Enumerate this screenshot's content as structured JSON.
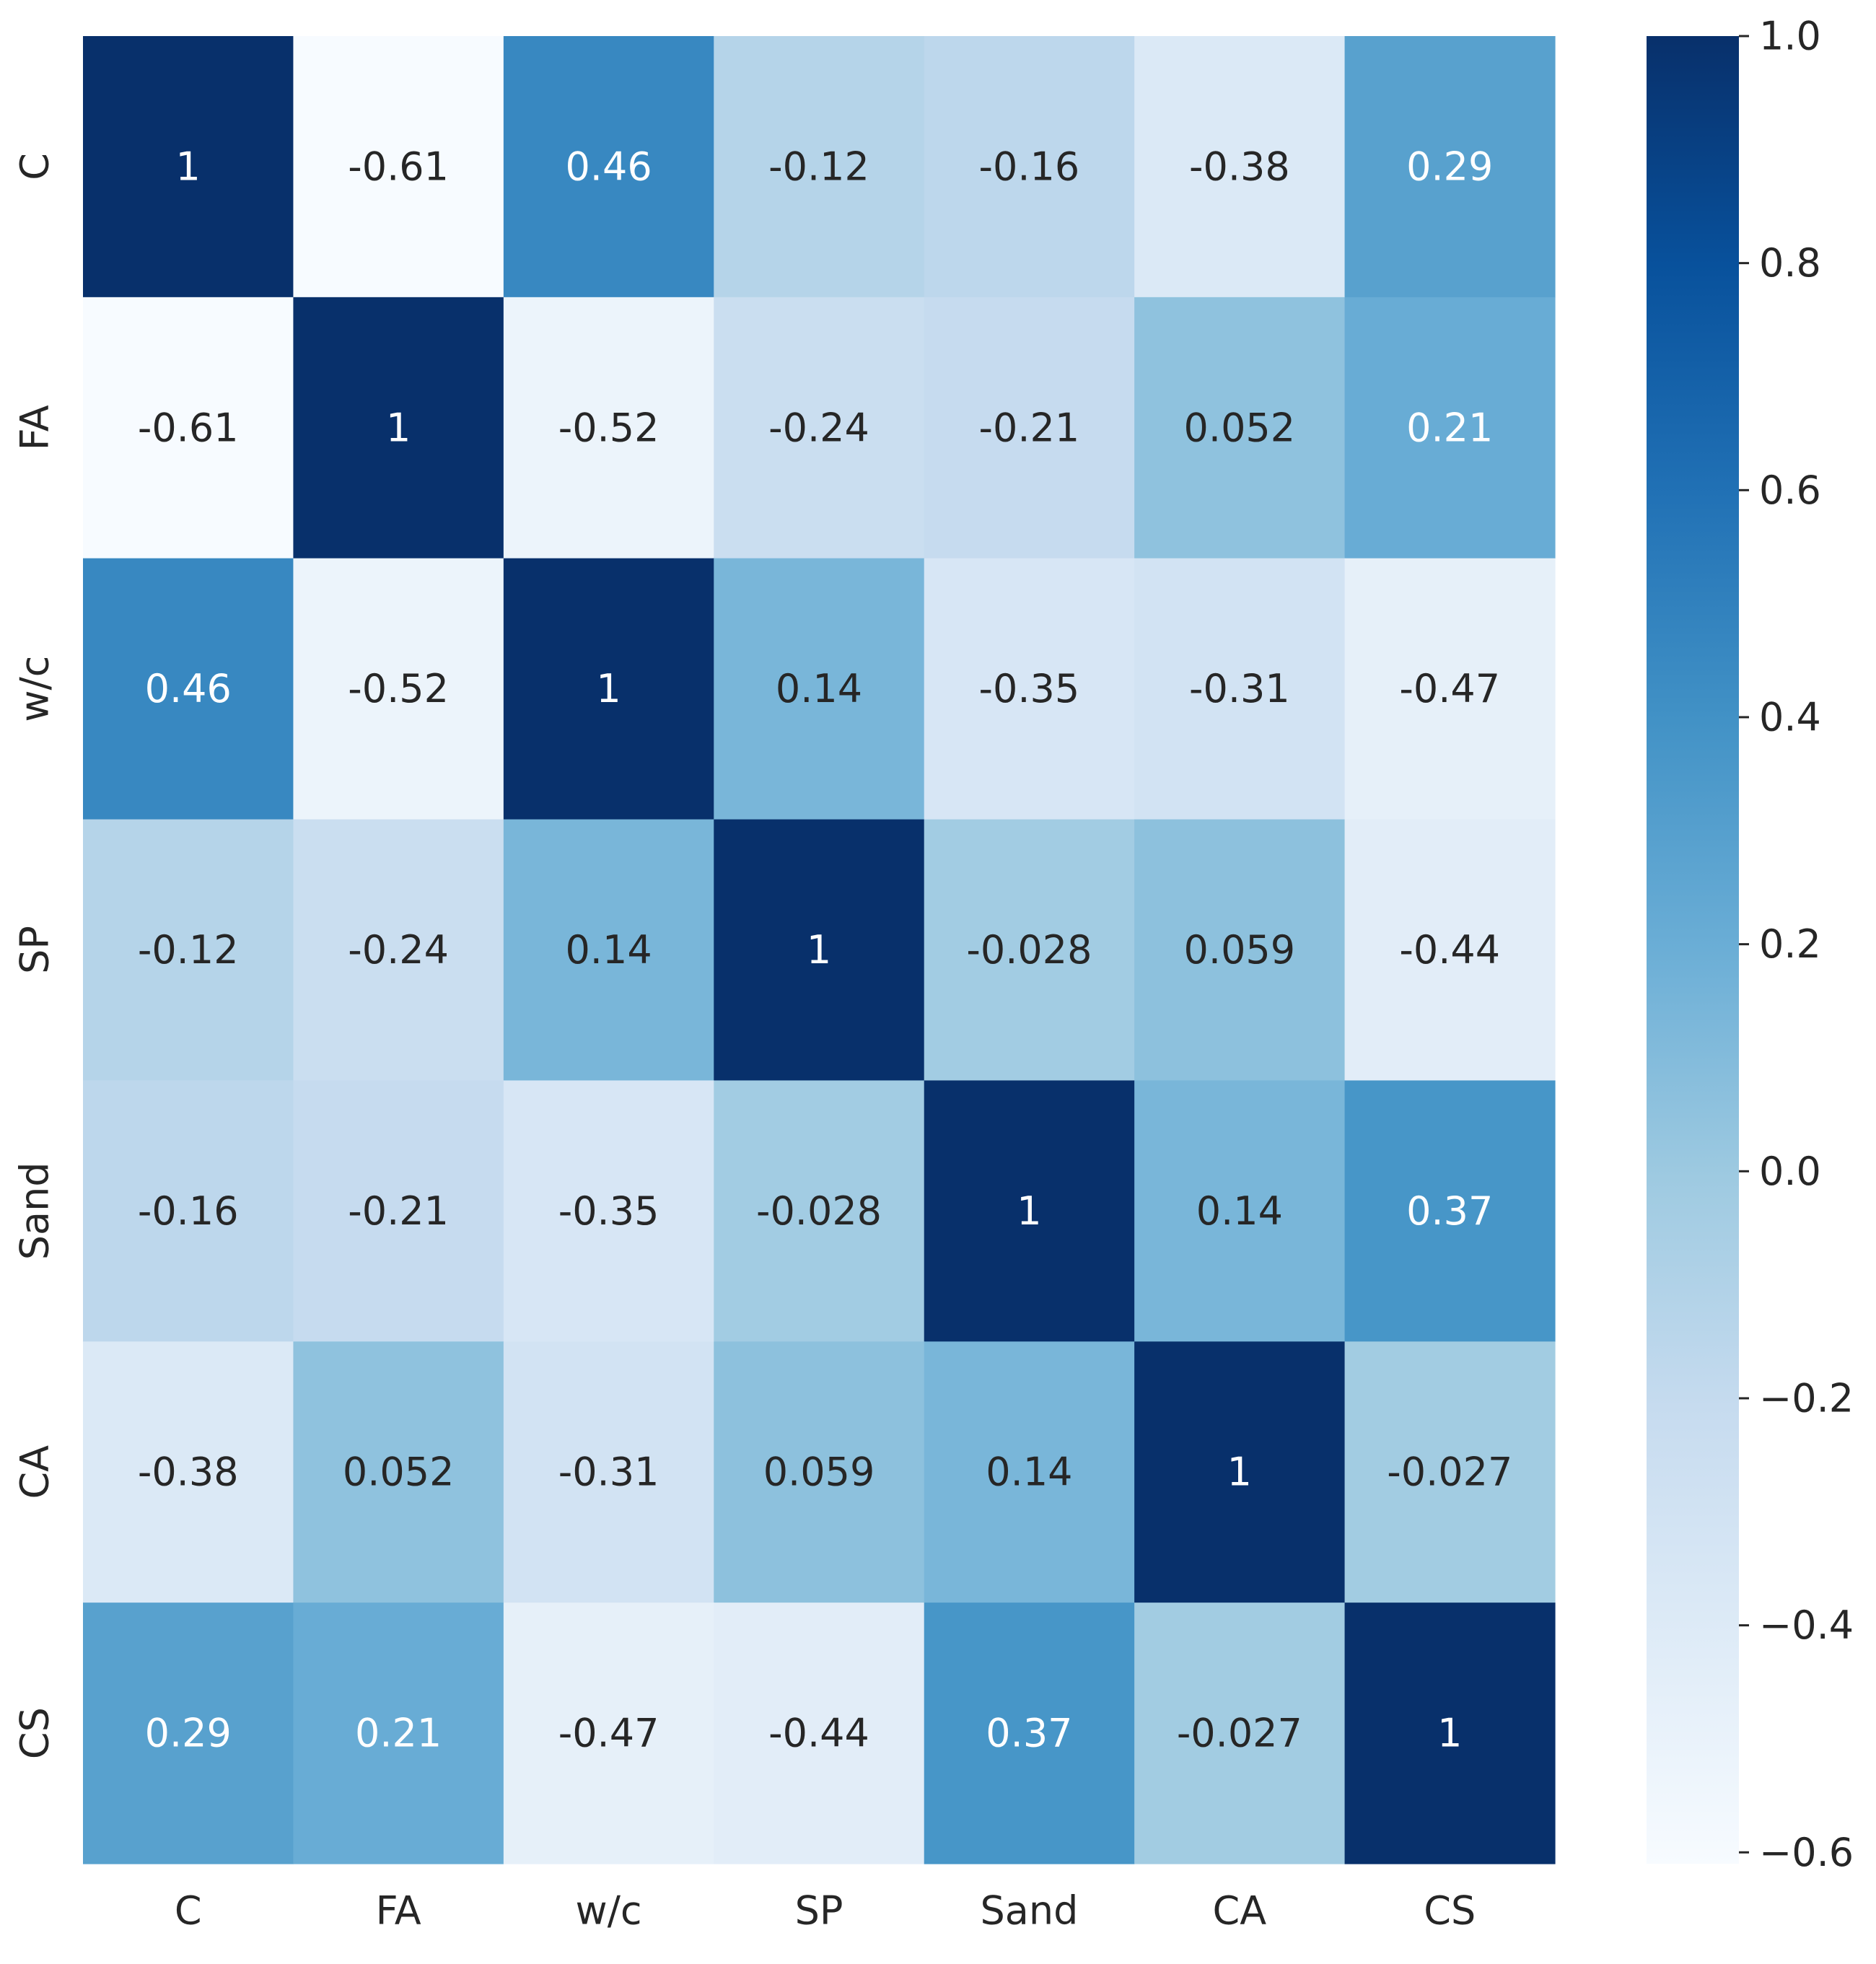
{
  "chart_data": {
    "type": "heatmap",
    "title": "",
    "xlabel": "",
    "ylabel": "",
    "x_categories": [
      "C",
      "FA",
      "w/c",
      "SP",
      "Sand",
      "CA",
      "CS"
    ],
    "y_categories": [
      "C",
      "FA",
      "w/c",
      "SP",
      "Sand",
      "CA",
      "CS"
    ],
    "values": [
      [
        1,
        -0.61,
        0.46,
        -0.12,
        -0.16,
        -0.38,
        0.29
      ],
      [
        -0.61,
        1,
        -0.52,
        -0.24,
        -0.21,
        0.052,
        0.21
      ],
      [
        0.46,
        -0.52,
        1,
        0.14,
        -0.35,
        -0.31,
        -0.47
      ],
      [
        -0.12,
        -0.24,
        0.14,
        1,
        -0.028,
        0.059,
        -0.44
      ],
      [
        -0.16,
        -0.21,
        -0.35,
        -0.028,
        1,
        0.14,
        0.37
      ],
      [
        -0.38,
        0.052,
        -0.31,
        0.059,
        0.14,
        1,
        -0.027
      ],
      [
        0.29,
        0.21,
        -0.47,
        -0.44,
        0.37,
        -0.027,
        1
      ]
    ],
    "cell_labels": [
      [
        "1",
        "-0.61",
        "0.46",
        "-0.12",
        "-0.16",
        "-0.38",
        "0.29"
      ],
      [
        "-0.61",
        "1",
        "-0.52",
        "-0.24",
        "-0.21",
        "0.052",
        "0.21"
      ],
      [
        "0.46",
        "-0.52",
        "1",
        "0.14",
        "-0.35",
        "-0.31",
        "-0.47"
      ],
      [
        "-0.12",
        "-0.24",
        "0.14",
        "1",
        "-0.028",
        "0.059",
        "-0.44"
      ],
      [
        "-0.16",
        "-0.21",
        "-0.35",
        "-0.028",
        "1",
        "0.14",
        "0.37"
      ],
      [
        "-0.38",
        "0.052",
        "-0.31",
        "0.059",
        "0.14",
        "1",
        "-0.027"
      ],
      [
        "0.29",
        "0.21",
        "-0.47",
        "-0.44",
        "0.37",
        "-0.027",
        "1"
      ]
    ],
    "colorbar": {
      "min": -0.61,
      "max": 1.0,
      "ticks": [
        1.0,
        0.8,
        0.6,
        0.4,
        0.2,
        0.0,
        -0.2,
        -0.4,
        -0.6
      ],
      "tick_labels": [
        "1.0",
        "0.8",
        "0.6",
        "0.4",
        "0.2",
        "0.0",
        "−0.2",
        "−0.4",
        "−0.6"
      ],
      "colormap": "Blues",
      "color_stops": [
        "#f7fbff",
        "#deebf7",
        "#c6dbef",
        "#9ecae1",
        "#6baed6",
        "#4292c6",
        "#2171b5",
        "#08519c",
        "#08306b"
      ]
    },
    "annotation_colors": {
      "dark_text": "#262626",
      "light_text": "#ffffff"
    },
    "grid": false,
    "legend": "none"
  }
}
